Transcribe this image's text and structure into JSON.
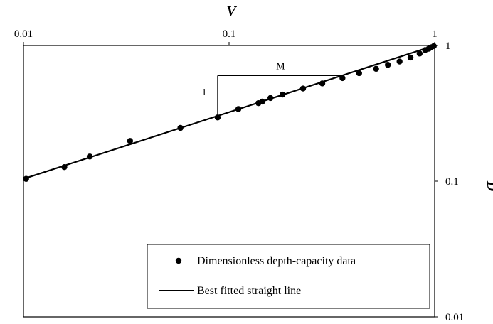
{
  "chart_data": {
    "type": "scatter",
    "x_axis": {
      "label": "V",
      "scale": "log",
      "position": "top",
      "range": [
        0.01,
        1
      ],
      "ticks": [
        0.01,
        0.1,
        1
      ],
      "tick_labels": [
        "0.01",
        "0.1",
        "1"
      ]
    },
    "y_axis": {
      "label": "D",
      "scale": "log",
      "position": "right",
      "range": [
        0.01,
        1
      ],
      "ticks": [
        1,
        0.1,
        0.01
      ],
      "tick_labels": [
        "1",
        "0.1",
        "0.01"
      ]
    },
    "grid": false,
    "series": [
      {
        "name": "Dimensionless depth-capacity data",
        "kind": "points",
        "color": "#000000",
        "points": [
          [
            0.0103,
            0.104
          ],
          [
            0.0158,
            0.127
          ],
          [
            0.021,
            0.152
          ],
          [
            0.033,
            0.198
          ],
          [
            0.058,
            0.247
          ],
          [
            0.088,
            0.295
          ],
          [
            0.111,
            0.34
          ],
          [
            0.139,
            0.376
          ],
          [
            0.145,
            0.386
          ],
          [
            0.159,
            0.41
          ],
          [
            0.182,
            0.435
          ],
          [
            0.229,
            0.482
          ],
          [
            0.284,
            0.525
          ],
          [
            0.356,
            0.575
          ],
          [
            0.429,
            0.625
          ],
          [
            0.519,
            0.673
          ],
          [
            0.592,
            0.72
          ],
          [
            0.675,
            0.762
          ],
          [
            0.763,
            0.815
          ],
          [
            0.845,
            0.872
          ],
          [
            0.899,
            0.925
          ],
          [
            0.935,
            0.946
          ],
          [
            0.962,
            0.97
          ],
          [
            0.99,
            0.99
          ]
        ]
      },
      {
        "name": "Best fitted straight line",
        "kind": "line",
        "color": "#000000",
        "points": [
          [
            0.0102,
            0.105
          ],
          [
            1,
            1
          ]
        ]
      }
    ],
    "annotations": {
      "slope_run_label": "M",
      "slope_rise_label": "1",
      "triangle": {
        "x1": 0.088,
        "x2": 0.36,
        "y_low": 0.295,
        "y_high": 0.6
      }
    },
    "legend": {
      "placement": "bottom-right",
      "entries": [
        {
          "label": "Dimensionless depth-capacity data",
          "marker": "dot"
        },
        {
          "label": "Best fitted straight line",
          "marker": "line"
        }
      ]
    }
  }
}
